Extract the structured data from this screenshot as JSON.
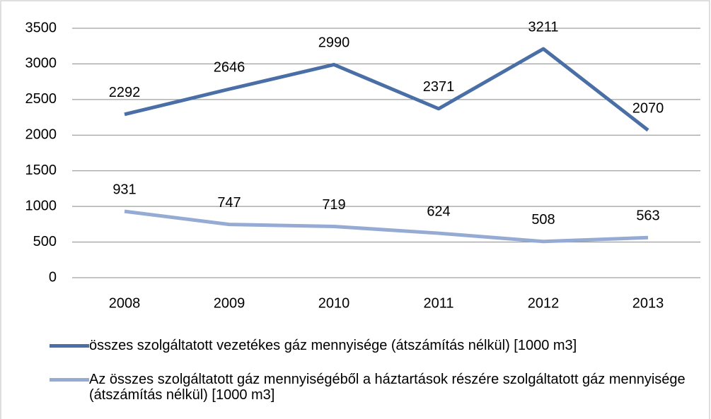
{
  "chart_data": {
    "type": "line",
    "categories": [
      "2008",
      "2009",
      "2010",
      "2011",
      "2012",
      "2013"
    ],
    "series": [
      {
        "name": "összes szolgáltatott vezetékes gáz mennyisége (átszámítás nélkül) [1000 m3]",
        "color": "#4a6fa6",
        "values": [
          2292,
          2646,
          2990,
          2371,
          3211,
          2070
        ]
      },
      {
        "name": "Az összes szolgáltatott gáz mennyiségéből a háztartások részére szolgáltatott gáz mennyisége (átszámítás nélkül) [1000 m3]",
        "color": "#96abd3",
        "values": [
          931,
          747,
          719,
          624,
          508,
          563
        ]
      }
    ],
    "ylim": [
      0,
      3500
    ],
    "yticks": [
      0,
      500,
      1000,
      1500,
      2000,
      2500,
      3000,
      3500
    ],
    "grid": true,
    "legend": "bottom"
  }
}
